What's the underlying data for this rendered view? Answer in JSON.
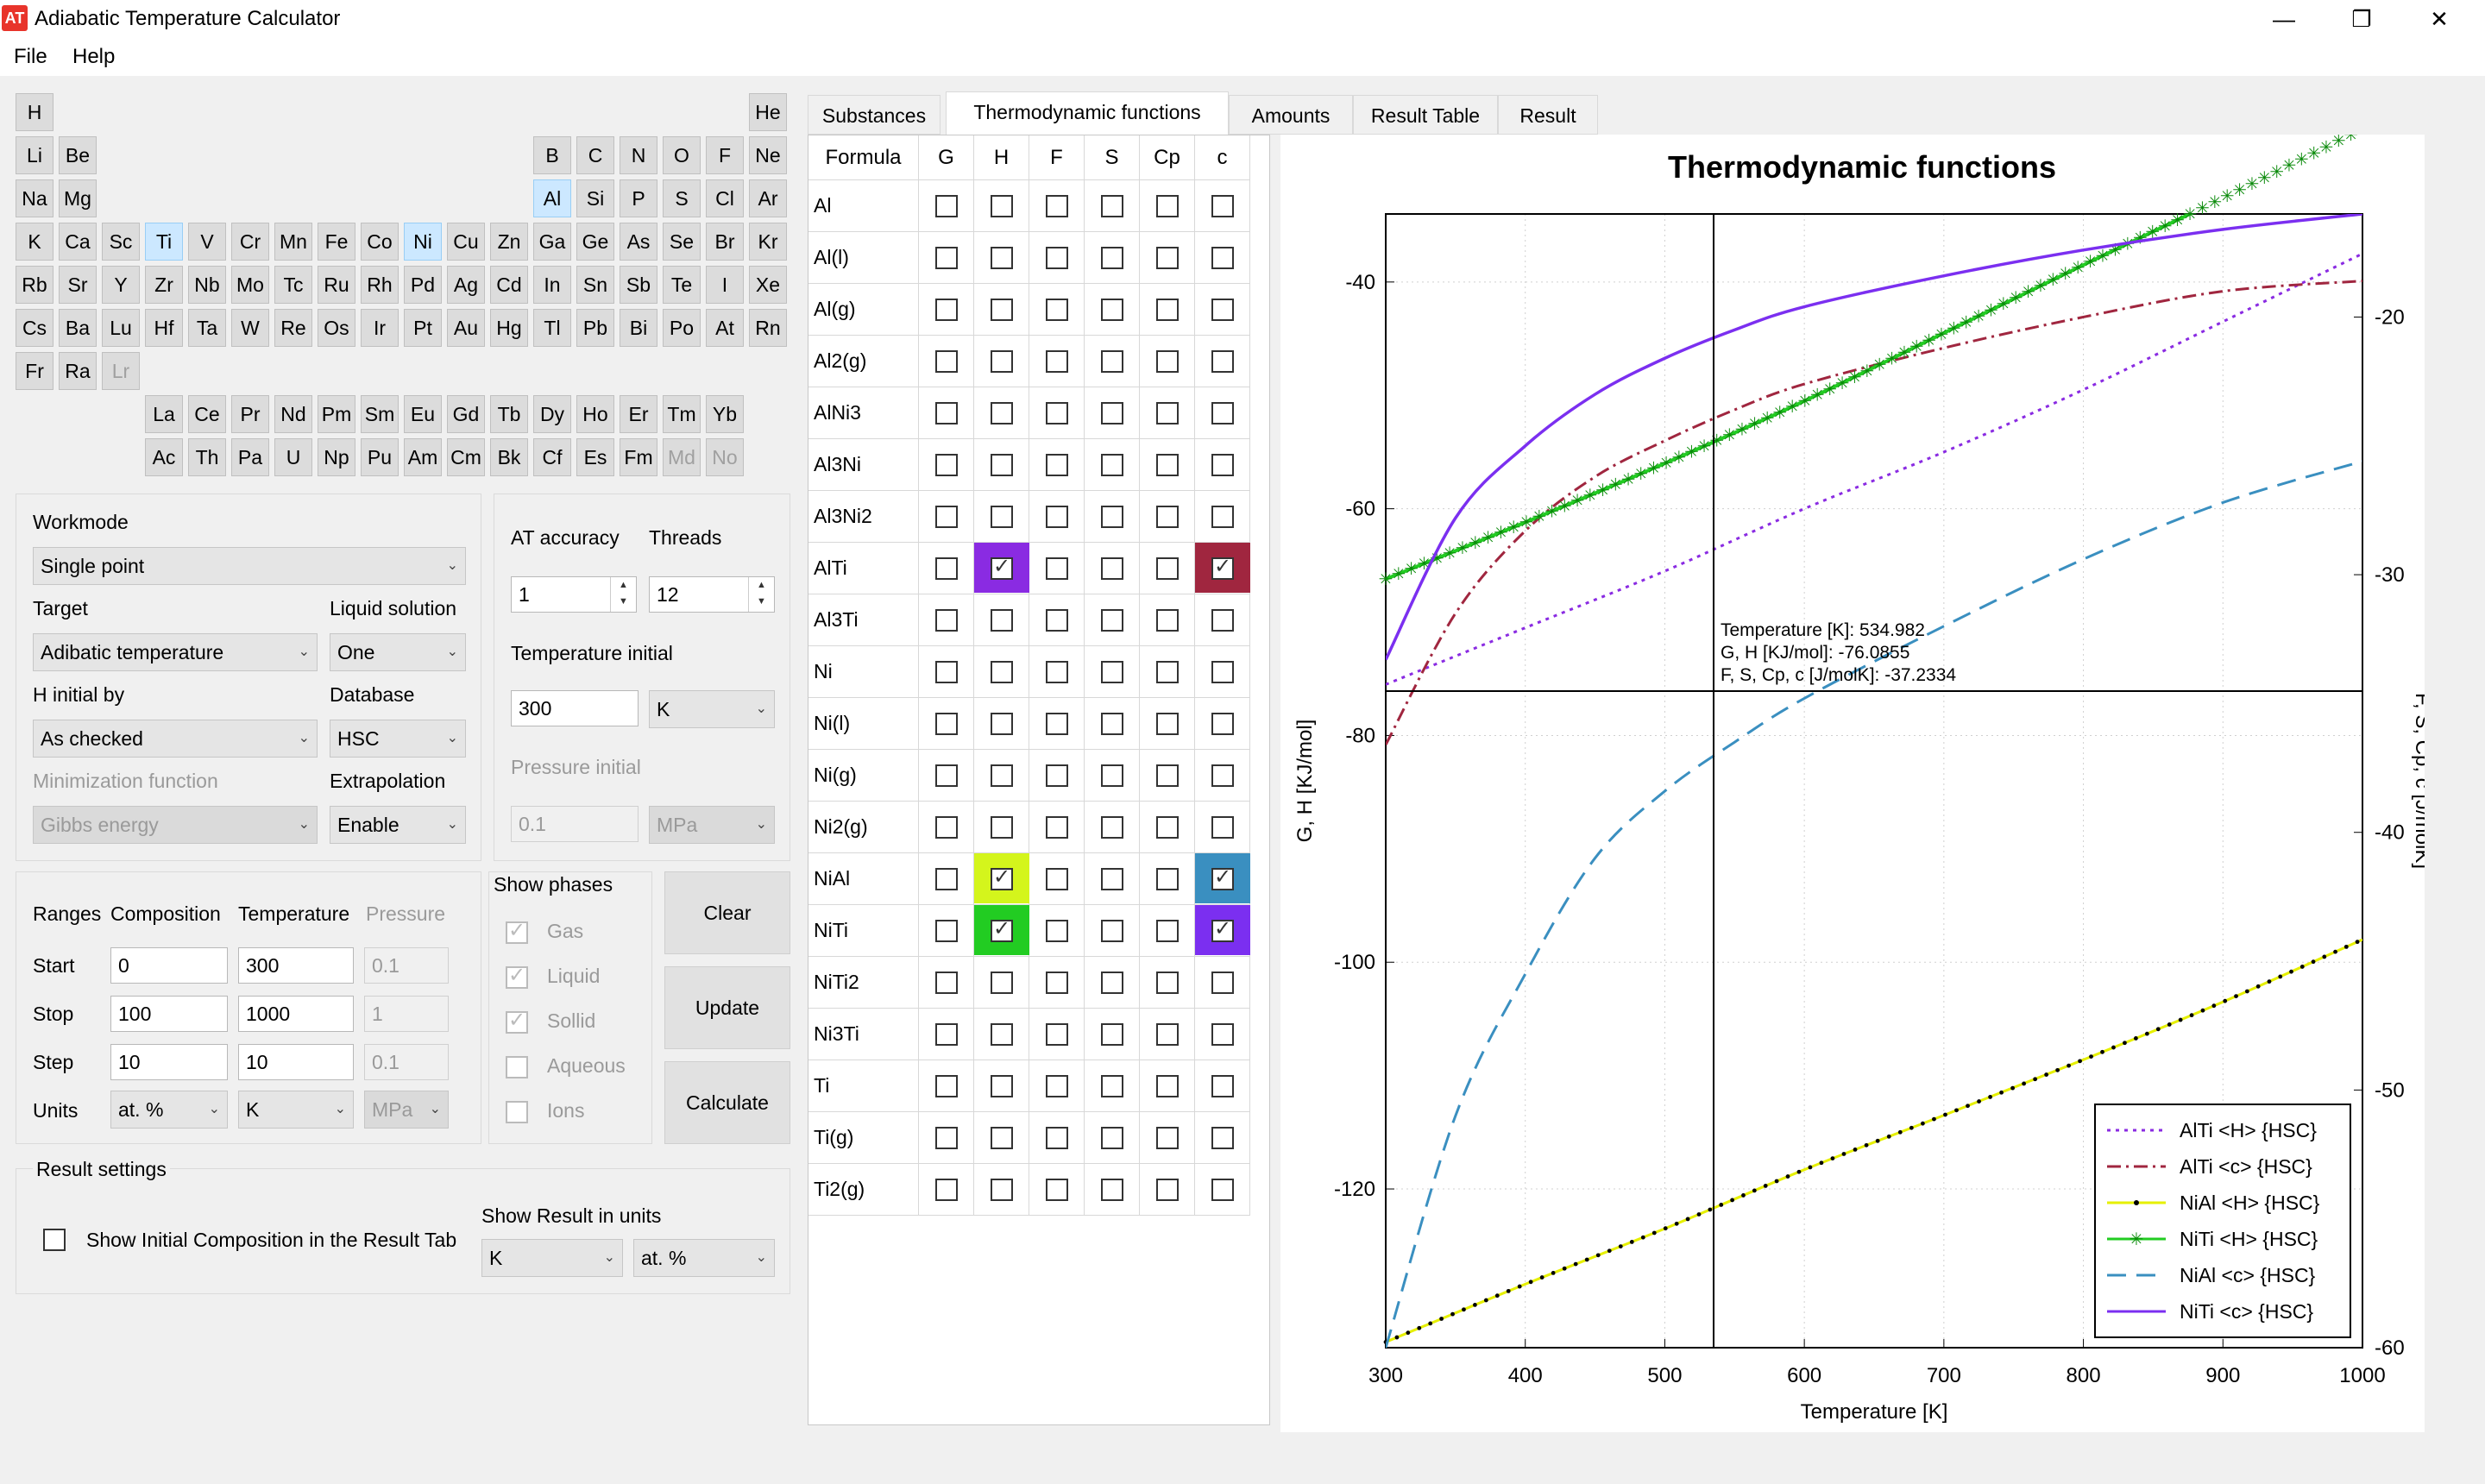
{
  "window": {
    "title": "Adiabatic Temperature Calculator",
    "icon_text": "AT",
    "minimize": "—",
    "restore": "❐",
    "close": "✕"
  },
  "menu": [
    "File",
    "Help"
  ],
  "periodic_table": [
    [
      "H",
      "He"
    ],
    [
      "Li",
      "Be",
      "B",
      "C",
      "N",
      "O",
      "F",
      "Ne"
    ],
    [
      "Na",
      "Mg",
      "Al",
      "Si",
      "P",
      "S",
      "Cl",
      "Ar"
    ],
    [
      "K",
      "Ca",
      "Sc",
      "Ti",
      "V",
      "Cr",
      "Mn",
      "Fe",
      "Co",
      "Ni",
      "Cu",
      "Zn",
      "Ga",
      "Ge",
      "As",
      "Se",
      "Br",
      "Kr"
    ],
    [
      "Rb",
      "Sr",
      "Y",
      "Zr",
      "Nb",
      "Mo",
      "Tc",
      "Ru",
      "Rh",
      "Pd",
      "Ag",
      "Cd",
      "In",
      "Sn",
      "Sb",
      "Te",
      "I",
      "Xe"
    ],
    [
      "Cs",
      "Ba",
      "Lu",
      "Hf",
      "Ta",
      "W",
      "Re",
      "Os",
      "Ir",
      "Pt",
      "Au",
      "Hg",
      "Tl",
      "Pb",
      "Bi",
      "Po",
      "At",
      "Rn"
    ],
    [
      "Fr",
      "Ra",
      "Lr"
    ],
    [
      "La",
      "Ce",
      "Pr",
      "Nd",
      "Pm",
      "Sm",
      "Eu",
      "Gd",
      "Tb",
      "Dy",
      "Ho",
      "Er",
      "Tm",
      "Yb"
    ],
    [
      "Ac",
      "Th",
      "Pa",
      "U",
      "Np",
      "Pu",
      "Am",
      "Cm",
      "Bk",
      "Cf",
      "Es",
      "Fm",
      "Md",
      "No"
    ]
  ],
  "selected_elements": [
    "Al",
    "Ti",
    "Ni"
  ],
  "disabled_elements": [
    "Lr",
    "Md",
    "No"
  ],
  "settings": {
    "workmode_label": "Workmode",
    "workmode_value": "Single point",
    "target_label": "Target",
    "target_value": "Adibatic temperature",
    "liquid_solution_label": "Liquid solution",
    "liquid_solution_value": "One",
    "h_initial_label": "H initial by",
    "h_initial_value": "As checked",
    "database_label": "Database",
    "database_value": "HSC",
    "minimization_label": "Minimization function",
    "minimization_value": "Gibbs energy",
    "extrapolation_label": "Extrapolation",
    "extrapolation_value": "Enable",
    "at_accuracy_label": "AT accuracy",
    "at_accuracy_value": "1",
    "threads_label": "Threads",
    "threads_value": "12",
    "temp_initial_label": "Temperature initial",
    "temp_initial_value": "300",
    "temp_unit": "K",
    "pressure_initial_label": "Pressure initial",
    "pressure_initial_value": "0.1",
    "pressure_unit": "MPa"
  },
  "ranges": {
    "ranges_label": "Ranges",
    "composition_label": "Composition",
    "temperature_label": "Temperature",
    "pressure_label": "Pressure",
    "start_label": "Start",
    "stop_label": "Stop",
    "step_label": "Step",
    "units_label": "Units",
    "start": [
      "0",
      "300",
      "0.1"
    ],
    "stop": [
      "100",
      "1000",
      "1"
    ],
    "step": [
      "10",
      "10",
      "0.1"
    ],
    "units": [
      "at. %",
      "K",
      "MPa"
    ]
  },
  "phases": {
    "title": "Show phases",
    "items": [
      {
        "label": "Gas",
        "checked": true
      },
      {
        "label": "Liquid",
        "checked": true
      },
      {
        "label": "Sollid",
        "checked": true
      },
      {
        "label": "Aqueous",
        "checked": false
      },
      {
        "label": "Ions",
        "checked": false
      }
    ]
  },
  "buttons": {
    "clear": "Clear",
    "update": "Update",
    "calculate": "Calculate"
  },
  "result_settings": {
    "title": "Result settings",
    "show_initial": "Show Initial Composition in the Result Tab",
    "show_result_units": "Show Result in units",
    "units_temp": "K",
    "units_comp": "at. %"
  },
  "tabs": [
    "Substances",
    "Thermodynamic functions",
    "Amounts",
    "Result Table",
    "Result"
  ],
  "active_tab": 1,
  "table": {
    "headers": [
      "Formula",
      "G",
      "H",
      "F",
      "S",
      "Cp",
      "c"
    ],
    "rows": [
      {
        "f": "Al",
        "checks": []
      },
      {
        "f": "Al(l)",
        "checks": []
      },
      {
        "f": "Al(g)",
        "checks": []
      },
      {
        "f": "Al2(g)",
        "checks": []
      },
      {
        "f": "AlNi3",
        "checks": []
      },
      {
        "f": "Al3Ni",
        "checks": []
      },
      {
        "f": "Al3Ni2",
        "checks": []
      },
      {
        "f": "AlTi",
        "checks": [
          {
            "col": 2,
            "color": "#8a2be2"
          },
          {
            "col": 6,
            "color": "#a0263f"
          }
        ]
      },
      {
        "f": "Al3Ti",
        "checks": []
      },
      {
        "f": "Ni",
        "checks": []
      },
      {
        "f": "Ni(l)",
        "checks": []
      },
      {
        "f": "Ni(g)",
        "checks": []
      },
      {
        "f": "Ni2(g)",
        "checks": []
      },
      {
        "f": "NiAl",
        "checks": [
          {
            "col": 2,
            "color": "#d4f51c"
          },
          {
            "col": 6,
            "color": "#3a8fc0"
          }
        ]
      },
      {
        "f": "NiTi",
        "checks": [
          {
            "col": 2,
            "color": "#22cc22"
          },
          {
            "col": 6,
            "color": "#7b2ff0"
          }
        ]
      },
      {
        "f": "NiTi2",
        "checks": []
      },
      {
        "f": "Ni3Ti",
        "checks": []
      },
      {
        "f": "Ti",
        "checks": []
      },
      {
        "f": "Ti(g)",
        "checks": []
      },
      {
        "f": "Ti2(g)",
        "checks": []
      }
    ]
  },
  "chart_data": {
    "type": "line",
    "title": "Thermodynamic functions",
    "xlabel": "Temperature [K]",
    "ylabel": "G, H [KJ/mol]",
    "y2label": "F, S, Cp, c [J/molK]",
    "xlim": [
      300,
      1000
    ],
    "ylim": [
      -134,
      -34
    ],
    "y2lim": [
      -60,
      -16
    ],
    "xticks": [
      300,
      400,
      500,
      600,
      700,
      800,
      900,
      1000
    ],
    "yticks": [
      -40,
      -60,
      -80,
      -100,
      -120
    ],
    "y2ticks": [
      -20,
      -30,
      -40,
      -50,
      -60
    ],
    "grid": true,
    "legend_position": "bottom-right",
    "crosshair": {
      "x": 534.982,
      "y": -76.0855,
      "lines": [
        "Temperature [K]: 534.982",
        "G, H [KJ/mol]: -76.0855",
        "F, S, Cp, c [J/molK]: -37.2334"
      ]
    },
    "series": [
      {
        "name": "AlTi <H> {HSC}",
        "axis": "left",
        "color": "#8a2be2",
        "style": "dotted",
        "x": [
          300,
          400,
          500,
          600,
          700,
          800,
          900,
          1000
        ],
        "y": [
          -75.5,
          -70.5,
          -65.5,
          -60.0,
          -55.0,
          -49.5,
          -43.5,
          -37.5
        ]
      },
      {
        "name": "AlTi <c> {HSC}",
        "axis": "right",
        "color": "#a0263f",
        "style": "dashdot",
        "x": [
          300,
          350,
          400,
          450,
          500,
          550,
          600,
          700,
          800,
          900,
          1000
        ],
        "y": [
          -36.6,
          -31.5,
          -28.3,
          -26.2,
          -24.8,
          -23.6,
          -22.6,
          -21.2,
          -20.0,
          -19.0,
          -18.6
        ]
      },
      {
        "name": "NiAl <H> {HSC}",
        "axis": "left",
        "color": "#e6f000",
        "style": "line-dots",
        "x": [
          300,
          400,
          500,
          600,
          700,
          800,
          900,
          1000
        ],
        "y": [
          -133.5,
          -128.4,
          -123.5,
          -118.3,
          -113.5,
          -108.6,
          -103.5,
          -98.0
        ]
      },
      {
        "name": "NiTi <H> {HSC}",
        "axis": "left",
        "color": "#22cc22",
        "style": "line-stars",
        "x": [
          300,
          400,
          500,
          600,
          700,
          800,
          900,
          1000
        ],
        "y": [
          -66.2,
          -61.2,
          -56.0,
          -50.5,
          -44.5,
          -38.5,
          -32.6,
          -26.5
        ]
      },
      {
        "name": "NiAl <c> {HSC}",
        "axis": "right",
        "color": "#3a8fc0",
        "style": "dashed",
        "x": [
          300,
          350,
          400,
          450,
          500,
          550,
          600,
          700,
          800,
          900,
          1000
        ],
        "y": [
          -60.0,
          -51.0,
          -45.5,
          -41.0,
          -38.4,
          -36.5,
          -34.8,
          -32.0,
          -29.4,
          -27.2,
          -25.6
        ]
      },
      {
        "name": "NiTi <c> {HSC}",
        "axis": "right",
        "color": "#7b2ff0",
        "style": "solid",
        "x": [
          300,
          350,
          400,
          450,
          500,
          550,
          600,
          700,
          800,
          900,
          1000
        ],
        "y": [
          -33.3,
          -27.8,
          -25.0,
          -23.0,
          -21.6,
          -20.5,
          -19.6,
          -18.4,
          -17.4,
          -16.6,
          -16.0
        ]
      }
    ]
  }
}
